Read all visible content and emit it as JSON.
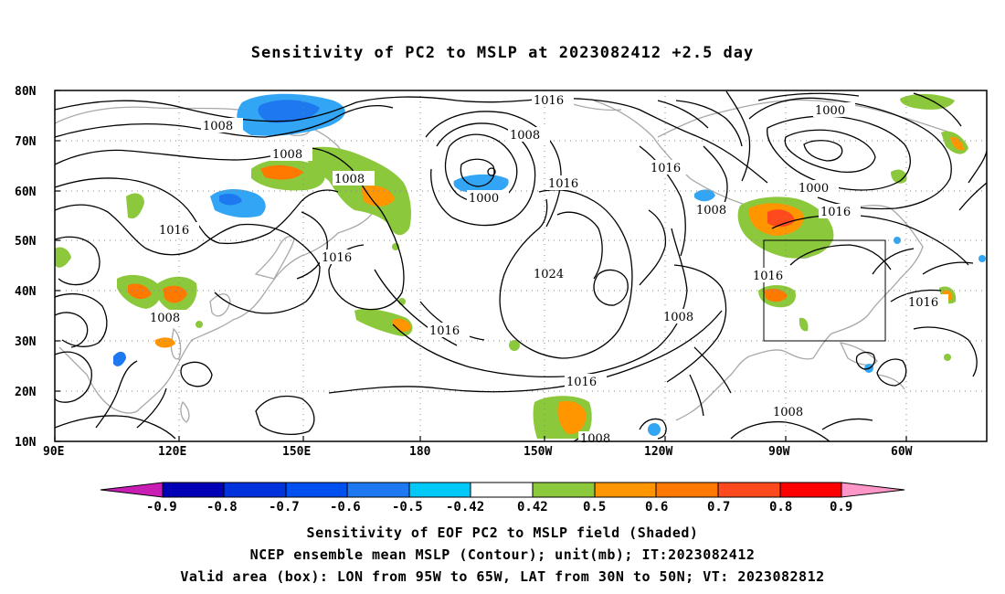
{
  "title": "Sensitivity of PC2 to MSLP at 2023082412 +2.5 day",
  "map": {
    "lat_labels": [
      "80N",
      "70N",
      "60N",
      "50N",
      "40N",
      "30N",
      "20N",
      "10N"
    ],
    "lon_labels": [
      "90E",
      "120E",
      "150E",
      "180",
      "150W",
      "120W",
      "90W",
      "60W"
    ],
    "contour_labels": [
      {
        "text": "1016"
      },
      {
        "text": "1008"
      },
      {
        "text": "1008"
      },
      {
        "text": "1008"
      },
      {
        "text": "1016"
      },
      {
        "text": "1016"
      },
      {
        "text": "1008"
      },
      {
        "text": "1000"
      },
      {
        "text": "1016"
      },
      {
        "text": "1024"
      },
      {
        "text": "1016"
      },
      {
        "text": "1016"
      },
      {
        "text": "1008"
      },
      {
        "text": "1008"
      },
      {
        "text": "1016"
      },
      {
        "text": "1000"
      },
      {
        "text": "1000"
      },
      {
        "text": "1016"
      },
      {
        "text": "1016"
      },
      {
        "text": "1016"
      },
      {
        "text": "1008"
      },
      {
        "text": "1008"
      }
    ],
    "valid_box": {
      "lon_min": "95W",
      "lon_max": "65W",
      "lat_min": "30N",
      "lat_max": "50N"
    }
  },
  "colorbar": {
    "labels": [
      "-0.9",
      "-0.8",
      "-0.7",
      "-0.6",
      "-0.5",
      "-0.42",
      "0.42",
      "0.5",
      "0.6",
      "0.7",
      "0.8",
      "0.9"
    ],
    "colors": [
      "#8a0090",
      "#0000b4",
      "#0033dd",
      "#0050f0",
      "#1e78f0",
      "#32a5f5",
      "#00c8f8",
      "#ffffff",
      "#8cc83c",
      "#ff9600",
      "#ff7800",
      "#ff4a1e",
      "#ff0000",
      "#ff96c8"
    ]
  },
  "captions": [
    "Sensitivity of EOF PC2 to MSLP field (Shaded)",
    "NCEP ensemble mean MSLP (Contour); unit(mb); IT:2023082412",
    "Valid area (box): LON from 95W to 65W, LAT from 30N to 50N; VT: 2023082812"
  ]
}
